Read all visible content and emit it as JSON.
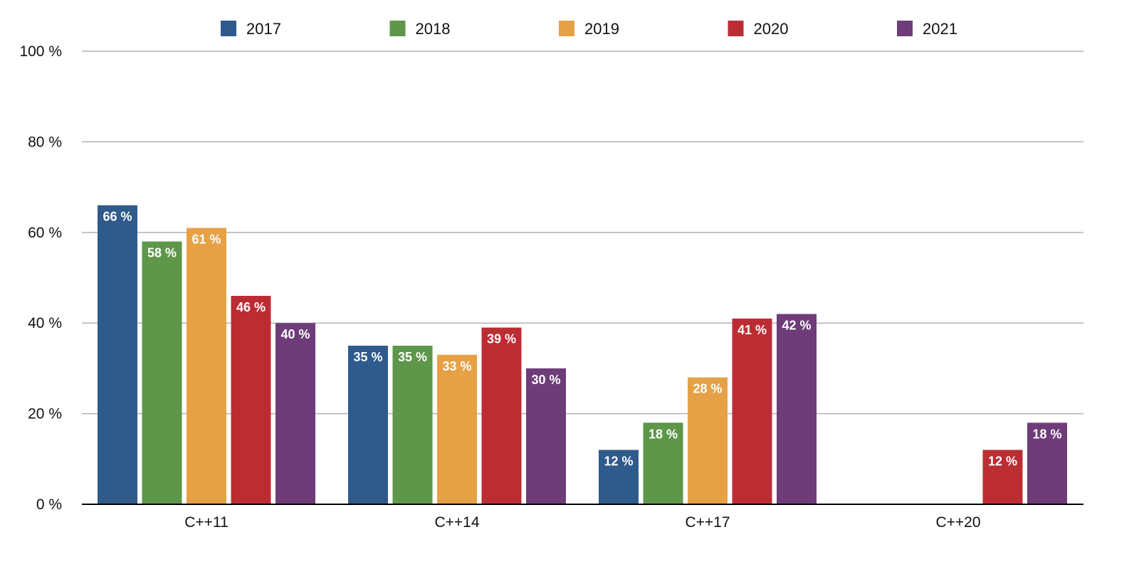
{
  "chart_data": {
    "type": "bar",
    "categories": [
      "C++11",
      "C++14",
      "C++17",
      "C++20"
    ],
    "series": [
      {
        "name": "2017",
        "color": "#2f5a8c",
        "values": [
          66,
          35,
          12,
          null
        ]
      },
      {
        "name": "2018",
        "color": "#5e964a",
        "values": [
          58,
          35,
          18,
          null
        ]
      },
      {
        "name": "2019",
        "color": "#e6a146",
        "values": [
          61,
          33,
          28,
          null
        ]
      },
      {
        "name": "2020",
        "color": "#bc2d33",
        "values": [
          46,
          39,
          41,
          12
        ]
      },
      {
        "name": "2021",
        "color": "#6e3d79",
        "values": [
          40,
          30,
          42,
          18
        ]
      }
    ],
    "ylim": [
      0,
      100
    ],
    "yticks": [
      0,
      20,
      40,
      60,
      80,
      100
    ],
    "ytick_labels": [
      "0 %",
      "20 %",
      "40 %",
      "60 %",
      "80 %",
      "100 %"
    ],
    "value_suffix": " %",
    "grid": true,
    "legend_position": "top-center",
    "title": "",
    "xlabel": "",
    "ylabel": ""
  }
}
